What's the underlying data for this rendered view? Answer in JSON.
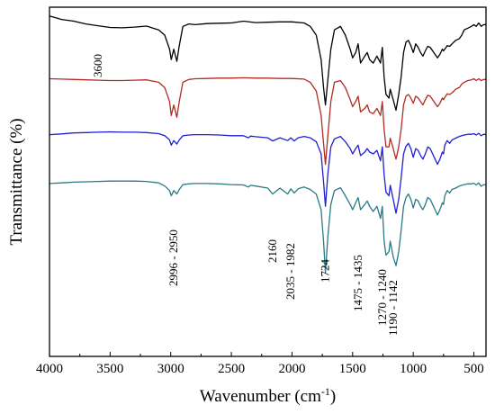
{
  "chart_data": {
    "type": "line",
    "title": "",
    "xlabel": "Wavenumber (cm",
    "xlabel_sup": "-1",
    "xlabel_close": ")",
    "ylabel": "Transmittance (%)",
    "xlim": [
      4000,
      400
    ],
    "x_reversed": true,
    "xticks": [
      4000,
      3500,
      3000,
      2500,
      2000,
      1500,
      1000,
      500
    ],
    "yticks_shown": false,
    "grid": false,
    "legend": "none",
    "annotations": [
      {
        "text": "3600",
        "x": 3600
      },
      {
        "text": "2996 - 2950",
        "x": 2975
      },
      {
        "text": "2160",
        "x": 2160
      },
      {
        "text": "2035 - 1982",
        "x": 2010
      },
      {
        "text": "1724",
        "x": 1724
      },
      {
        "text": "1475 - 1435",
        "x": 1455
      },
      {
        "text": "1270 - 1240",
        "x": 1255
      },
      {
        "text": "1190 - 1142",
        "x": 1165
      }
    ],
    "series": [
      {
        "color": "#000000",
        "x": [
          4000,
          3900,
          3800,
          3700,
          3600,
          3500,
          3400,
          3300,
          3200,
          3100,
          3050,
          3010,
          2996,
          2975,
          2950,
          2930,
          2900,
          2850,
          2800,
          2700,
          2600,
          2500,
          2400,
          2300,
          2200,
          2100,
          2000,
          1900,
          1850,
          1800,
          1760,
          1740,
          1724,
          1705,
          1680,
          1650,
          1600,
          1560,
          1520,
          1500,
          1475,
          1455,
          1435,
          1400,
          1380,
          1360,
          1330,
          1300,
          1270,
          1255,
          1240,
          1225,
          1200,
          1190,
          1165,
          1142,
          1120,
          1100,
          1080,
          1060,
          1040,
          1020,
          1000,
          980,
          960,
          940,
          920,
          900,
          880,
          860,
          840,
          820,
          800,
          780,
          760,
          750,
          740,
          720,
          700,
          680,
          650,
          620,
          600,
          580,
          550,
          520,
          500,
          480,
          460,
          440,
          420,
          400
        ],
        "y": [
          97.5,
          96.5,
          96,
          95.2,
          94.7,
          94.2,
          94.1,
          94.3,
          94.6,
          93.5,
          92,
          88,
          85,
          88,
          84.5,
          89,
          94.5,
          95.2,
          95,
          95.3,
          95.4,
          95.5,
          96,
          95.6,
          95.7,
          95.8,
          95.8,
          95.5,
          94.5,
          92,
          85,
          77,
          72,
          79,
          88,
          93.5,
          94.5,
          92,
          88,
          85.5,
          87,
          89.5,
          84,
          86,
          87,
          85,
          84,
          86,
          84,
          88.5,
          80,
          75,
          74,
          76.5,
          73.5,
          70.5,
          75,
          80,
          87,
          90,
          90.5,
          89,
          87,
          89.5,
          88.5,
          87,
          86,
          87.5,
          88.8,
          88.5,
          87.5,
          86.5,
          85.5,
          86.5,
          88,
          87.5,
          88,
          89,
          88.8,
          89.5,
          90.5,
          91,
          92,
          93.5,
          94,
          94.5,
          95,
          94.5,
          95.5,
          94.5,
          95,
          95
        ]
      },
      {
        "color": "#b22b22",
        "x": [
          4000,
          3900,
          3800,
          3700,
          3600,
          3500,
          3400,
          3300,
          3200,
          3100,
          3050,
          3010,
          2996,
          2975,
          2950,
          2930,
          2900,
          2850,
          2800,
          2700,
          2600,
          2500,
          2400,
          2300,
          2200,
          2100,
          2000,
          1900,
          1850,
          1800,
          1760,
          1740,
          1724,
          1705,
          1680,
          1650,
          1600,
          1560,
          1520,
          1500,
          1475,
          1455,
          1435,
          1400,
          1380,
          1360,
          1330,
          1300,
          1270,
          1255,
          1240,
          1225,
          1200,
          1190,
          1165,
          1142,
          1120,
          1100,
          1080,
          1060,
          1040,
          1020,
          1000,
          980,
          960,
          940,
          920,
          900,
          880,
          860,
          840,
          820,
          800,
          780,
          760,
          750,
          740,
          720,
          700,
          680,
          650,
          620,
          600,
          580,
          550,
          520,
          500,
          480,
          460,
          440,
          420,
          400
        ],
        "y": [
          79.5,
          79.4,
          79.3,
          79.2,
          79.1,
          79,
          79,
          79.1,
          79.2,
          78.5,
          77,
          73,
          69,
          72,
          68.5,
          73,
          78.5,
          79.3,
          79.5,
          79.6,
          79.7,
          79.7,
          79.8,
          79.7,
          79.7,
          79.6,
          79.6,
          79.4,
          78.5,
          76,
          69,
          61,
          55,
          63,
          73,
          78.5,
          79,
          77,
          73.5,
          71.5,
          73,
          74.5,
          70,
          71,
          72,
          70,
          69.5,
          71,
          69,
          73,
          65,
          60,
          60,
          62.5,
          59.5,
          56.5,
          60,
          65,
          72,
          74.5,
          75,
          74,
          72.5,
          74.5,
          74,
          73,
          72,
          73.5,
          74.8,
          74.5,
          73.5,
          72.5,
          71.5,
          72.5,
          74,
          73.5,
          74.2,
          75.2,
          75,
          75.5,
          76.5,
          77,
          78,
          78.5,
          79,
          79.2,
          79.5,
          79,
          79.5,
          79,
          79.3,
          79.3
        ]
      },
      {
        "color": "#1f1fd6",
        "x": [
          4000,
          3900,
          3800,
          3700,
          3600,
          3500,
          3400,
          3300,
          3200,
          3100,
          3050,
          3010,
          2996,
          2975,
          2950,
          2930,
          2900,
          2850,
          2800,
          2700,
          2600,
          2500,
          2400,
          2360,
          2340,
          2300,
          2200,
          2160,
          2100,
          2035,
          2010,
          1982,
          1950,
          1900,
          1850,
          1800,
          1760,
          1740,
          1724,
          1705,
          1680,
          1650,
          1600,
          1560,
          1520,
          1500,
          1475,
          1455,
          1435,
          1400,
          1380,
          1360,
          1330,
          1300,
          1270,
          1255,
          1240,
          1225,
          1200,
          1190,
          1165,
          1142,
          1120,
          1100,
          1080,
          1060,
          1040,
          1020,
          1000,
          980,
          960,
          940,
          920,
          900,
          880,
          860,
          840,
          820,
          800,
          780,
          760,
          750,
          740,
          720,
          700,
          680,
          650,
          620,
          600,
          580,
          550,
          520,
          500,
          480,
          460,
          440,
          420,
          400
        ],
        "y": [
          63.5,
          63.7,
          64,
          64.1,
          64.2,
          64.3,
          64.2,
          64.2,
          64.1,
          63.8,
          63.2,
          62,
          60.5,
          61.8,
          60.8,
          62,
          63.2,
          63.4,
          63.5,
          63.5,
          63.4,
          63.2,
          63.2,
          62.6,
          63.1,
          62.9,
          62.6,
          61.7,
          62.6,
          61.8,
          62.6,
          61.7,
          62.6,
          63,
          62.6,
          61.5,
          58,
          50,
          43,
          52,
          60,
          62.3,
          63,
          61.5,
          59.5,
          58,
          59.5,
          60.5,
          57.5,
          58.5,
          59.5,
          58.5,
          58,
          59,
          56,
          60,
          52,
          47,
          46,
          49,
          45,
          41,
          45,
          51,
          58,
          60.2,
          61,
          59.5,
          57,
          59.5,
          59,
          57.5,
          56.5,
          58,
          60,
          59.5,
          58,
          56.5,
          55,
          56.5,
          58.5,
          58,
          60.5,
          61.8,
          61,
          62,
          62.5,
          63,
          63.2,
          63.4,
          63.6,
          63.6,
          63.8,
          63.4,
          63.9,
          63.2,
          63.6,
          63.5
        ]
      },
      {
        "color": "#2a7a86",
        "x": [
          4000,
          3900,
          3800,
          3700,
          3600,
          3500,
          3400,
          3300,
          3200,
          3100,
          3050,
          3010,
          2996,
          2975,
          2950,
          2930,
          2900,
          2850,
          2800,
          2700,
          2600,
          2500,
          2400,
          2360,
          2340,
          2300,
          2200,
          2160,
          2100,
          2035,
          2010,
          1982,
          1950,
          1900,
          1850,
          1800,
          1760,
          1740,
          1724,
          1705,
          1680,
          1650,
          1600,
          1560,
          1520,
          1500,
          1475,
          1455,
          1435,
          1400,
          1380,
          1360,
          1330,
          1300,
          1270,
          1255,
          1240,
          1225,
          1200,
          1190,
          1165,
          1142,
          1120,
          1100,
          1080,
          1060,
          1040,
          1020,
          1000,
          980,
          960,
          940,
          920,
          900,
          880,
          860,
          840,
          820,
          800,
          780,
          760,
          750,
          740,
          720,
          700,
          680,
          650,
          620,
          600,
          580,
          550,
          520,
          500,
          480,
          460,
          440,
          420,
          400
        ],
        "y": [
          49.5,
          49.7,
          49.9,
          50,
          50.1,
          50.2,
          50.2,
          50.2,
          50.1,
          49.7,
          48.8,
          47.5,
          46,
          47.5,
          46.5,
          47.8,
          49.2,
          49.4,
          49.5,
          49.5,
          49.4,
          49.2,
          49.1,
          48.5,
          49,
          48.8,
          48.2,
          46.5,
          48.2,
          46.5,
          48,
          46.8,
          48,
          48.5,
          47.8,
          46.5,
          42,
          33,
          24,
          34,
          43.5,
          47.5,
          48.3,
          46,
          43.5,
          42,
          44,
          45.5,
          42,
          43.5,
          44.5,
          43,
          41.5,
          43,
          39.5,
          43,
          33,
          29,
          30,
          33,
          28.5,
          26,
          30,
          36,
          43,
          45.5,
          46.5,
          45,
          42.5,
          45,
          44.5,
          43,
          42,
          43.5,
          45.5,
          45,
          43.5,
          42,
          40.5,
          42,
          44,
          43.5,
          46,
          47.5,
          46.8,
          47.8,
          48.2,
          48.8,
          49,
          49.2,
          49.4,
          49.4,
          49.6,
          49.1,
          49.7,
          48.7,
          49.2,
          49.1
        ]
      }
    ]
  }
}
